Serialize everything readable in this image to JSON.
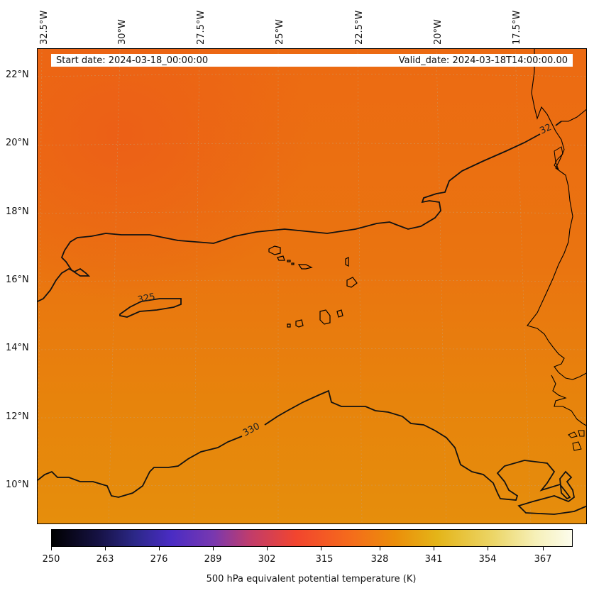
{
  "map": {
    "start_date": "Start date: 2024-03-18_00:00:00",
    "valid_date": "Valid_date: 2024-03-18T14:00:00.00",
    "longitude_labels": [
      "32.5°W",
      "30°W",
      "27.5°W",
      "25°W",
      "22.5°W",
      "20°W",
      "17.5°W"
    ],
    "latitude_labels": [
      "22°N",
      "20°N",
      "18°N",
      "16°N",
      "14°N",
      "12°N",
      "10°N"
    ],
    "contour_labels": [
      "325",
      "330",
      "32"
    ],
    "colors": {
      "field_north": "#ec6a10",
      "field_south": "#e68e0c",
      "coast": "#000000",
      "gridline": "#b0b0b0"
    }
  },
  "colorbar": {
    "title": "500 hPa equivalent potential temperature (K)",
    "ticks": [
      "250",
      "263",
      "276",
      "289",
      "302",
      "315",
      "328",
      "341",
      "354",
      "367"
    ],
    "range": [
      250,
      376
    ],
    "colormap": "CMRmap"
  }
}
